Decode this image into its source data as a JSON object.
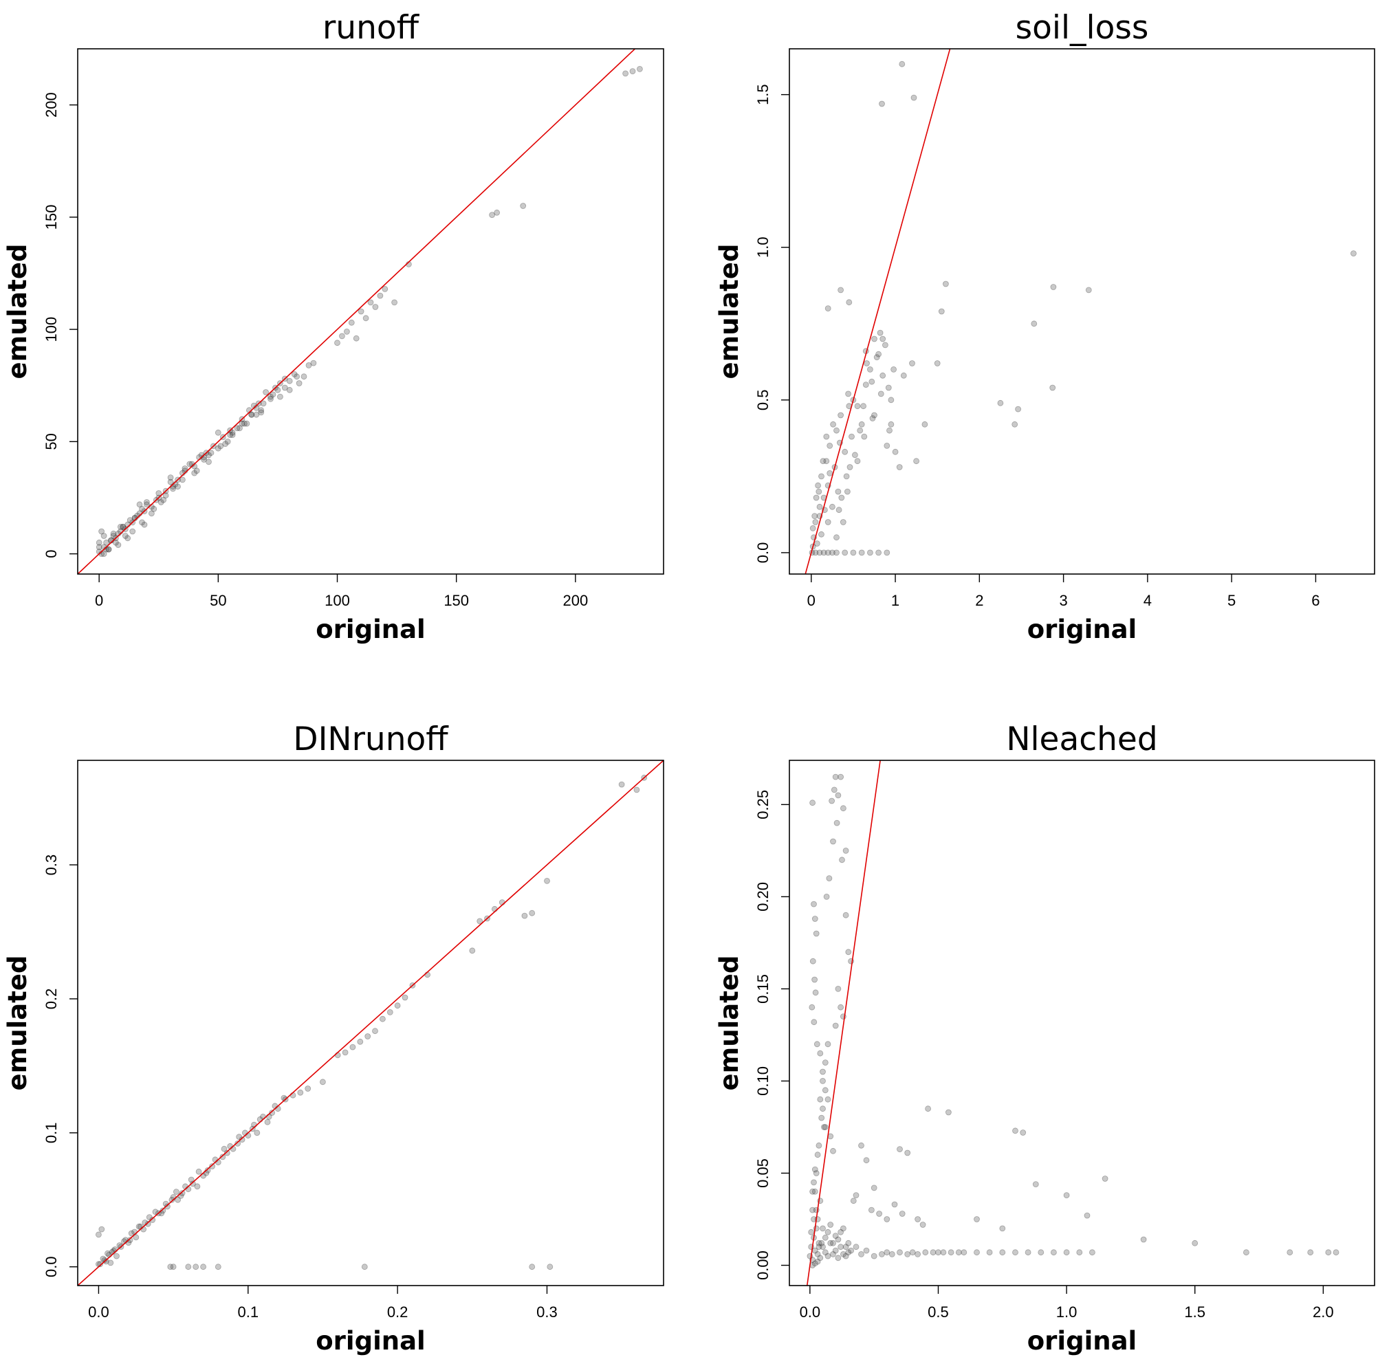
{
  "chart_data": [
    {
      "type": "scatter",
      "title": "runoff",
      "xlabel": "original",
      "ylabel": "emulated",
      "xlim": [
        -9,
        237
      ],
      "ylim": [
        -9,
        225
      ],
      "xticks": [
        0,
        50,
        100,
        150,
        200
      ],
      "yticks": [
        0,
        50,
        100,
        150,
        200
      ],
      "xtick_labels": [
        "0",
        "50",
        "100",
        "150",
        "200"
      ],
      "ytick_labels": [
        "0",
        "50",
        "100",
        "150",
        "200"
      ],
      "reference_line": {
        "intercept": 0,
        "slope": 1,
        "color": "#e00000"
      },
      "points": {
        "x": [
          0,
          1,
          2,
          3,
          4,
          5,
          6,
          7,
          8,
          9,
          10,
          11,
          12,
          13,
          14,
          15,
          16,
          17,
          18,
          19,
          20,
          22,
          24,
          25,
          26,
          28,
          30,
          31,
          32,
          33,
          35,
          36,
          38,
          40,
          42,
          44,
          45,
          46,
          48,
          50,
          52,
          54,
          55,
          56,
          58,
          60,
          62,
          63,
          64,
          65,
          66,
          67,
          68,
          70,
          72,
          74,
          75,
          76,
          78,
          80,
          82,
          84,
          86,
          88,
          90,
          100,
          102,
          104,
          106,
          108,
          110,
          112,
          114,
          116,
          118,
          120,
          124,
          130,
          165,
          167,
          178,
          221,
          224,
          227,
          0,
          1,
          2,
          3,
          5,
          6,
          8,
          10,
          12,
          15,
          18,
          20,
          22,
          25,
          28,
          30,
          33,
          36,
          40,
          43,
          46,
          50,
          53,
          56,
          60,
          64,
          68,
          72,
          76,
          80,
          0,
          2,
          4,
          7,
          9,
          11,
          14,
          17,
          19,
          23,
          27,
          31,
          35,
          39,
          41,
          44,
          47,
          51,
          55,
          59,
          61,
          66,
          69,
          73,
          78,
          83
        ],
        "y": [
          1,
          10,
          3,
          5,
          2,
          6,
          8,
          7,
          9,
          10,
          12,
          11,
          13,
          15,
          14,
          16,
          17,
          18,
          20,
          19,
          22,
          21,
          24,
          25,
          23,
          28,
          32,
          30,
          31,
          33,
          36,
          37,
          40,
          39,
          43,
          42,
          45,
          44,
          48,
          47,
          52,
          50,
          55,
          54,
          56,
          60,
          58,
          64,
          62,
          66,
          65,
          67,
          64,
          72,
          70,
          74,
          73,
          76,
          78,
          77,
          80,
          76,
          79,
          84,
          85,
          94,
          97,
          99,
          103,
          96,
          108,
          105,
          112,
          110,
          115,
          118,
          112,
          129,
          151,
          152,
          155,
          214,
          215,
          216,
          5,
          0,
          8,
          2,
          6,
          9,
          4,
          12,
          7,
          16,
          14,
          23,
          18,
          27,
          26,
          34,
          30,
          38,
          36,
          44,
          41,
          54,
          49,
          53,
          58,
          62,
          63,
          69,
          70,
          73,
          3,
          0,
          2,
          5,
          12,
          8,
          10,
          22,
          13,
          20,
          24,
          29,
          33,
          40,
          37,
          43,
          45,
          48,
          53,
          56,
          58,
          62,
          67,
          71,
          74,
          79
        ]
      }
    },
    {
      "type": "scatter",
      "title": "soil_loss",
      "xlabel": "original",
      "ylabel": "emulated",
      "xlim": [
        -0.26,
        6.7
      ],
      "ylim": [
        -0.07,
        1.65
      ],
      "xticks": [
        0,
        1,
        2,
        3,
        4,
        5,
        6
      ],
      "yticks": [
        0,
        0.5,
        1,
        1.5
      ],
      "xtick_labels": [
        "0",
        "1",
        "2",
        "3",
        "4",
        "5",
        "6"
      ],
      "ytick_labels": [
        "0.0",
        "0.5",
        "1.0",
        "1.5"
      ],
      "reference_line": {
        "intercept": 0,
        "slope": 1,
        "color": "#e00000"
      },
      "points": {
        "x": [
          0.01,
          0.02,
          0.03,
          0.05,
          0.07,
          0.09,
          0.1,
          0.12,
          0.15,
          0.18,
          0.2,
          0.22,
          0.25,
          0.28,
          0.3,
          0.32,
          0.35,
          0.38,
          0.4,
          0.42,
          0.45,
          0.48,
          0.5,
          0.55,
          0.6,
          0.65,
          0.7,
          0.75,
          0.8,
          0.85,
          0.9,
          0.95,
          1.0,
          1.05,
          1.1,
          1.2,
          1.25,
          1.35,
          1.5,
          1.55,
          1.6,
          1.08,
          0.84,
          1.22,
          2.25,
          2.42,
          2.46,
          2.65,
          2.87,
          2.88,
          3.3,
          6.45,
          0.05,
          0.1,
          0.15,
          0.2,
          0.25,
          0.3,
          0.02,
          0.04,
          0.06,
          0.08,
          0.12,
          0.14,
          0.16,
          0.18,
          0.22,
          0.26,
          0.34,
          0.36,
          0.44,
          0.46,
          0.52,
          0.58,
          0.62,
          0.66,
          0.72,
          0.78,
          0.82,
          0.88,
          0.92,
          0.98,
          0.1,
          0.2,
          0.3,
          0.4,
          0.5,
          0.6,
          0.7,
          0.8,
          0.9,
          0.2,
          0.35,
          0.45,
          0.55,
          0.65,
          0.75,
          0.85,
          0.95,
          0.33,
          0.43,
          0.63,
          0.73,
          0.83,
          0.93
        ],
        "y": [
          0,
          0.02,
          0.05,
          0.1,
          0.03,
          0.2,
          0.12,
          0.25,
          0.18,
          0.3,
          0.22,
          0.35,
          0.15,
          0.28,
          0.4,
          0.2,
          0.45,
          0.1,
          0.33,
          0.25,
          0.48,
          0.38,
          0.5,
          0.3,
          0.42,
          0.55,
          0.6,
          0.45,
          0.65,
          0.7,
          0.35,
          0.5,
          0.33,
          0.28,
          0.58,
          0.62,
          0.3,
          0.42,
          0.62,
          0.79,
          0.88,
          1.6,
          1.47,
          1.49,
          0.49,
          0.42,
          0.47,
          0.75,
          0.54,
          0.87,
          0.86,
          0.98,
          0,
          0.15,
          0,
          0.1,
          0,
          0.05,
          0.08,
          0.12,
          0.18,
          0.22,
          0.06,
          0.3,
          0.14,
          0.38,
          0.26,
          0.42,
          0.36,
          0.18,
          0.52,
          0.28,
          0.32,
          0.4,
          0.48,
          0.62,
          0.56,
          0.64,
          0.72,
          0.68,
          0.54,
          0.6,
          0,
          0,
          0,
          0,
          0,
          0,
          0,
          0,
          0,
          0.8,
          0.86,
          0.82,
          0.48,
          0.66,
          0.7,
          0.58,
          0.42,
          0.14,
          0.2,
          0.38,
          0.44,
          0.52,
          0.4
        ]
      }
    },
    {
      "type": "scatter",
      "title": "DINrunoff",
      "xlabel": "original",
      "ylabel": "emulated",
      "xlim": [
        -0.014,
        0.378
      ],
      "ylim": [
        -0.014,
        0.378
      ],
      "xticks": [
        0,
        0.1,
        0.2,
        0.3
      ],
      "yticks": [
        0,
        0.1,
        0.2,
        0.3
      ],
      "xtick_labels": [
        "0.0",
        "0.1",
        "0.2",
        "0.3"
      ],
      "ytick_labels": [
        "0.0",
        "0.1",
        "0.2",
        "0.3"
      ],
      "reference_line": {
        "intercept": 0,
        "slope": 1,
        "color": "#e00000"
      },
      "points": {
        "x": [
          0,
          0.002,
          0.004,
          0.006,
          0.008,
          0.01,
          0.012,
          0.015,
          0.018,
          0.02,
          0.022,
          0.025,
          0.028,
          0.03,
          0.033,
          0.036,
          0.04,
          0.043,
          0.046,
          0.05,
          0.053,
          0.056,
          0.06,
          0.063,
          0.066,
          0.07,
          0.073,
          0.076,
          0.08,
          0.083,
          0.086,
          0.09,
          0.093,
          0.096,
          0.1,
          0.103,
          0.106,
          0.11,
          0.113,
          0.116,
          0.12,
          0.125,
          0.13,
          0.135,
          0.14,
          0.15,
          0.16,
          0.165,
          0.17,
          0.175,
          0.18,
          0.185,
          0.19,
          0.195,
          0.2,
          0.205,
          0.21,
          0.22,
          0.25,
          0.255,
          0.26,
          0.265,
          0.27,
          0.285,
          0.29,
          0.3,
          0.35,
          0.36,
          0.365,
          0.048,
          0.05,
          0.06,
          0.065,
          0.07,
          0.08,
          0.178,
          0.29,
          0.302,
          0,
          0.001,
          0.003,
          0.005,
          0.007,
          0.009,
          0.011,
          0.014,
          0.017,
          0.021,
          0.024,
          0.027,
          0.031,
          0.034,
          0.038,
          0.042,
          0.045,
          0.049,
          0.052,
          0.055,
          0.058,
          0.062,
          0.067,
          0.072,
          0.078,
          0.084,
          0.088,
          0.094,
          0.098,
          0.104,
          0.108,
          0.114,
          0.118,
          0.124
        ],
        "y": [
          0.002,
          0.028,
          0.005,
          0.01,
          0.003,
          0.012,
          0.008,
          0.015,
          0.02,
          0.018,
          0.025,
          0.022,
          0.03,
          0.028,
          0.032,
          0.035,
          0.04,
          0.042,
          0.045,
          0.052,
          0.05,
          0.055,
          0.058,
          0.062,
          0.06,
          0.068,
          0.072,
          0.075,
          0.078,
          0.082,
          0.085,
          0.088,
          0.092,
          0.095,
          0.098,
          0.103,
          0.1,
          0.112,
          0.108,
          0.115,
          0.118,
          0.125,
          0.128,
          0.13,
          0.133,
          0.138,
          0.158,
          0.16,
          0.164,
          0.168,
          0.172,
          0.176,
          0.185,
          0.19,
          0.195,
          0.201,
          0.21,
          0.218,
          0.236,
          0.258,
          0.26,
          0.267,
          0.272,
          0.262,
          0.264,
          0.288,
          0.36,
          0.356,
          0.365,
          0,
          0,
          0,
          0,
          0,
          0,
          0,
          0,
          0,
          0.024,
          0.002,
          0.006,
          0.004,
          0.009,
          0.011,
          0.013,
          0.016,
          0.019,
          0.02,
          0.026,
          0.03,
          0.033,
          0.037,
          0.041,
          0.04,
          0.047,
          0.05,
          0.056,
          0.053,
          0.06,
          0.065,
          0.071,
          0.07,
          0.08,
          0.088,
          0.09,
          0.097,
          0.1,
          0.106,
          0.11,
          0.112,
          0.12,
          0.126
        ]
      }
    },
    {
      "type": "scatter",
      "title": "Nleached",
      "xlabel": "original",
      "ylabel": "emulated",
      "xlim": [
        -0.08,
        2.2
      ],
      "ylim": [
        -0.011,
        0.274
      ],
      "xticks": [
        0,
        0.5,
        1,
        1.5,
        2
      ],
      "yticks": [
        0,
        0.05,
        0.1,
        0.15,
        0.2,
        0.25
      ],
      "xtick_labels": [
        "0.0",
        "0.5",
        "1.0",
        "1.5",
        "2.0"
      ],
      "ytick_labels": [
        "0.00",
        "0.05",
        "0.10",
        "0.15",
        "0.20",
        "0.25"
      ],
      "reference_line": {
        "intercept": 0,
        "slope": 1,
        "color": "#e00000"
      },
      "points": {
        "x": [
          0,
          0.005,
          0.01,
          0.015,
          0.02,
          0.025,
          0.03,
          0.035,
          0.04,
          0.05,
          0.06,
          0.07,
          0.08,
          0.09,
          0.1,
          0.11,
          0.12,
          0.13,
          0.14,
          0.15,
          0.01,
          0.02,
          0.03,
          0.04,
          0.05,
          0.06,
          0.07,
          0.08,
          0.09,
          0.1,
          0.11,
          0.12,
          0.13,
          0.14,
          0.15,
          0.16,
          0.18,
          0.2,
          0.22,
          0.25,
          0.28,
          0.3,
          0.32,
          0.35,
          0.38,
          0.4,
          0.42,
          0.45,
          0.48,
          0.5,
          0.52,
          0.55,
          0.58,
          0.6,
          0.65,
          0.7,
          0.75,
          0.8,
          0.85,
          0.9,
          0.95,
          1.0,
          1.05,
          1.1,
          1.3,
          1.5,
          1.7,
          1.87,
          1.95,
          2.02,
          2.05,
          0.65,
          0.75,
          0.8,
          0.83,
          0.88,
          1.0,
          1.08,
          1.15,
          0.46,
          0.54,
          0.35,
          0.38,
          0.12,
          0.1,
          0.095,
          0.11,
          0.085,
          0.13,
          0.105,
          0.09,
          0.14,
          0.125,
          0.075,
          0.065,
          0.14,
          0.15,
          0.16,
          0.11,
          0.12,
          0.13,
          0.1,
          0.07,
          0.06,
          0.05,
          0.04,
          0.045,
          0.055,
          0.03,
          0.035,
          0.025,
          0.02,
          0.015,
          0.01,
          0.01,
          0.015,
          0.02,
          0.025,
          0.012,
          0.018,
          0.022,
          0.008,
          0.016,
          0.028,
          0.04,
          0.05,
          0.06,
          0.07,
          0.05,
          0.06,
          0.08,
          0.09,
          0.2,
          0.22,
          0.25,
          0.18,
          0.17,
          0.24,
          0.27,
          0.3,
          0.33,
          0.36,
          0.42,
          0.44,
          0.02,
          0.01,
          0.03,
          0.005,
          0.015,
          0.025,
          0.035,
          0.045
        ],
        "y": [
          0.005,
          0.01,
          0.003,
          0.015,
          0.008,
          0.02,
          0.006,
          0.012,
          0.004,
          0.01,
          0.007,
          0.005,
          0.012,
          0.006,
          0.008,
          0.004,
          0.01,
          0.006,
          0.005,
          0.007,
          0.03,
          0.04,
          0.025,
          0.035,
          0.02,
          0.015,
          0.018,
          0.022,
          0.012,
          0.016,
          0.014,
          0.018,
          0.02,
          0.01,
          0.012,
          0.008,
          0.01,
          0.006,
          0.008,
          0.005,
          0.006,
          0.007,
          0.006,
          0.007,
          0.006,
          0.007,
          0.006,
          0.007,
          0.007,
          0.007,
          0.007,
          0.007,
          0.007,
          0.007,
          0.007,
          0.007,
          0.007,
          0.007,
          0.007,
          0.007,
          0.007,
          0.007,
          0.007,
          0.007,
          0.014,
          0.012,
          0.007,
          0.007,
          0.007,
          0.007,
          0.007,
          0.025,
          0.02,
          0.073,
          0.072,
          0.044,
          0.038,
          0.027,
          0.047,
          0.085,
          0.083,
          0.063,
          0.061,
          0.265,
          0.265,
          0.258,
          0.255,
          0.252,
          0.248,
          0.24,
          0.23,
          0.225,
          0.22,
          0.21,
          0.2,
          0.19,
          0.17,
          0.165,
          0.15,
          0.14,
          0.135,
          0.13,
          0.12,
          0.11,
          0.1,
          0.09,
          0.08,
          0.075,
          0.06,
          0.065,
          0.05,
          0.052,
          0.045,
          0.04,
          0.251,
          0.196,
          0.188,
          0.18,
          0.165,
          0.155,
          0.148,
          0.14,
          0.132,
          0.12,
          0.115,
          0.105,
          0.095,
          0.09,
          0.085,
          0.075,
          0.07,
          0.062,
          0.065,
          0.057,
          0.042,
          0.038,
          0.035,
          0.03,
          0.028,
          0.025,
          0.033,
          0.028,
          0.025,
          0.022,
          0.001,
          0.0,
          0.002,
          0.018,
          0.025,
          0.03,
          0.01,
          0.012
        ]
      }
    }
  ]
}
